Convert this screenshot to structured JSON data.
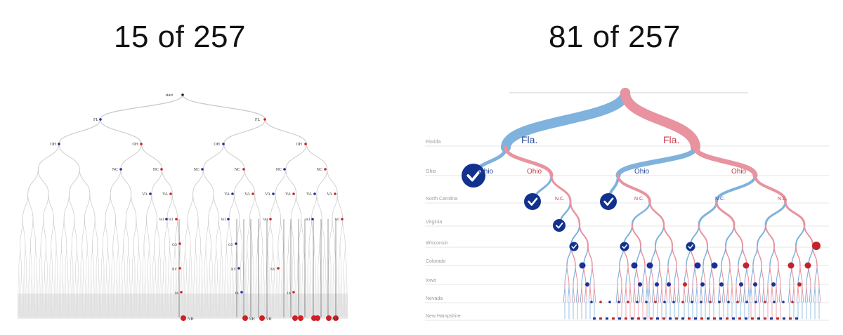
{
  "left_panel": {
    "title": "15 of 257",
    "root_label": "start",
    "levels": [
      "FL",
      "OH",
      "NC",
      "VA",
      "WI",
      "CO",
      "NV",
      "IA",
      "NH"
    ]
  },
  "right_panel": {
    "title": "81 of 257",
    "row_labels": [
      "Florida",
      "Ohio",
      "North Carolina",
      "Virginia",
      "Wisconsin",
      "Colorado",
      "Iowa",
      "Nevada",
      "New Hampshire"
    ],
    "branch_labels": {
      "fla_left": "Fla.",
      "fla_right": "Fla.",
      "ohio": "Ohio",
      "nc": "N.C."
    }
  },
  "colors": {
    "democrat_blue": "#7fb2dc",
    "republican_red": "#e8939f",
    "check_navy": "#12318f",
    "dot_red": "#d11f26",
    "dot_blue": "#1a2f9a",
    "tree_gray": "#c8c8c8"
  }
}
